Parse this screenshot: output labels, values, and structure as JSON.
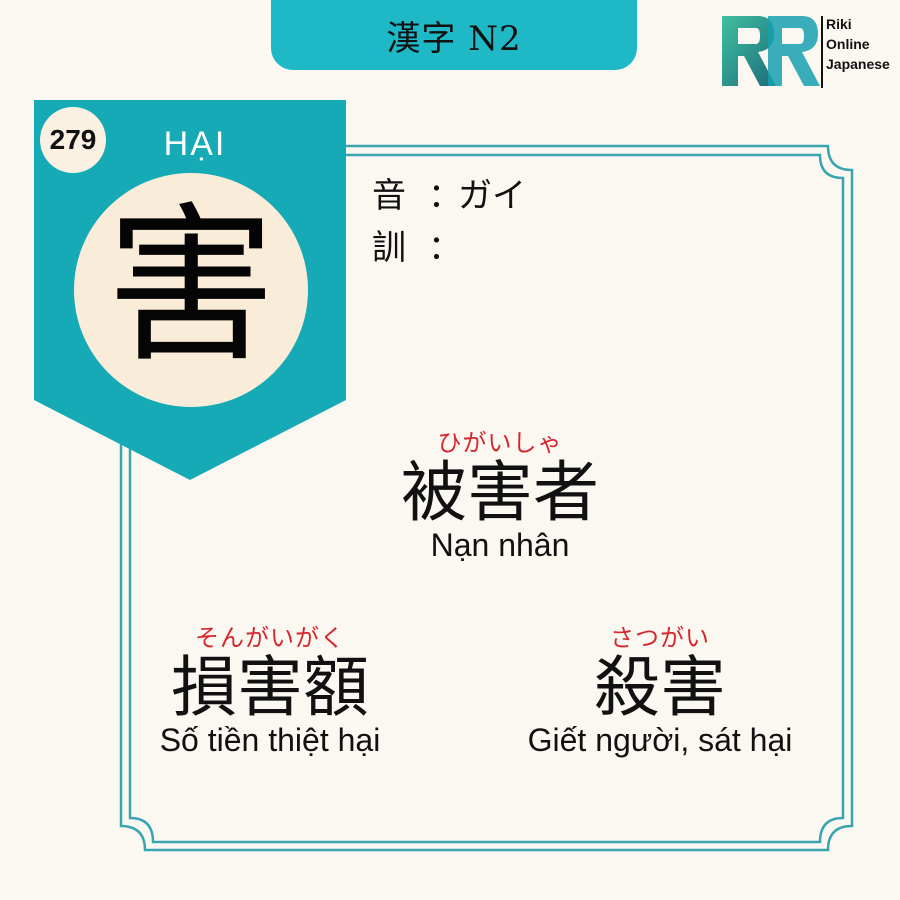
{
  "header": {
    "title": "漢字 N2"
  },
  "logo": {
    "line1": "Riki",
    "line2": "Online",
    "line3": "Japanese"
  },
  "card": {
    "number": "279",
    "han_viet": "HẠI",
    "kanji": "害",
    "on_label": "音",
    "on_reading": "ガイ",
    "kun_label": "訓",
    "kun_reading": "",
    "colon": "："
  },
  "vocab": [
    {
      "furigana": "ひがいしゃ",
      "word": "被害者",
      "meaning": "Nạn nhân"
    },
    {
      "furigana": "そんがいがく",
      "word": "損害額",
      "meaning": "Số tiền thiệt hại"
    },
    {
      "furigana": "さつがい",
      "word": "殺害",
      "meaning": "Giết người, sát hại"
    }
  ],
  "colors": {
    "teal": "#1fb8c6",
    "banner_teal": "#16aab6",
    "frame": "#3aa5b0",
    "furigana_red": "#d4282e",
    "background": "#fbf8f2"
  }
}
